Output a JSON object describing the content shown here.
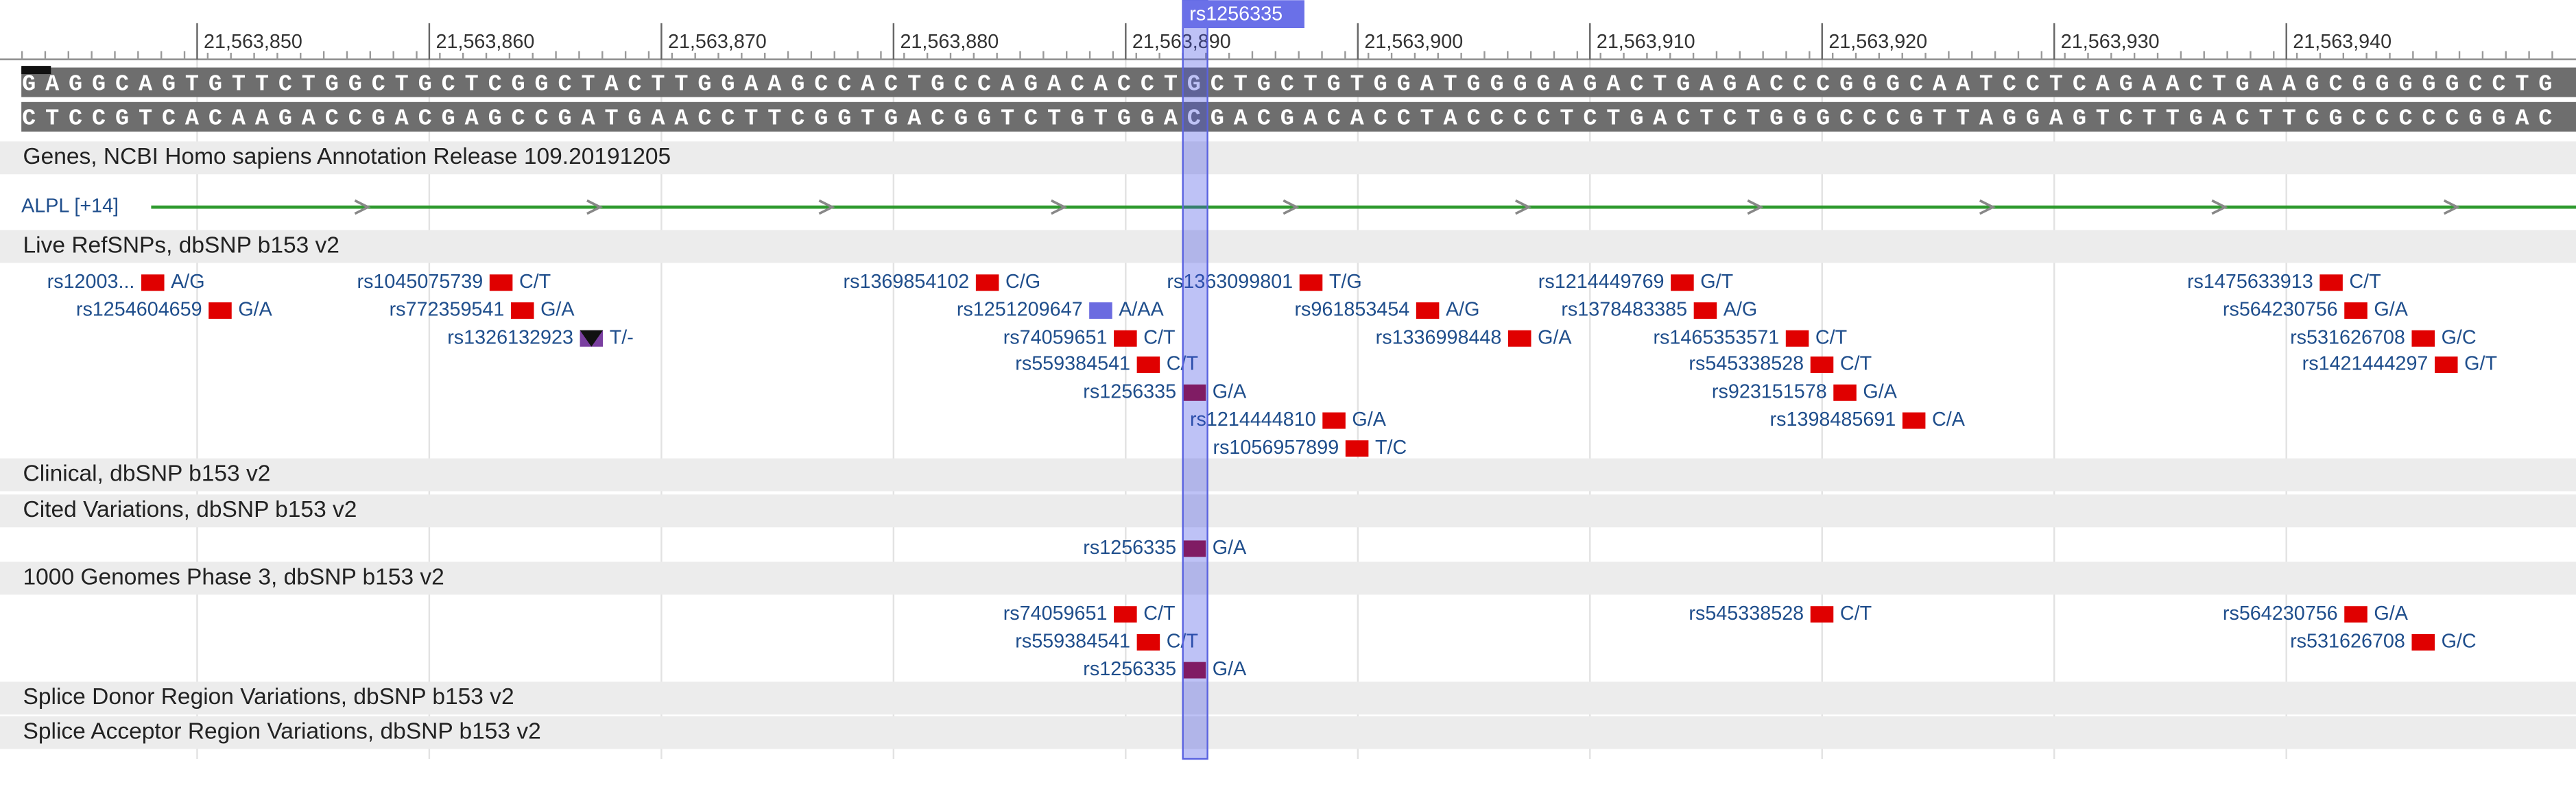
{
  "ruler": {
    "labels": [
      "21,563,850",
      "21,563,860",
      "21,563,870",
      "21,563,880",
      "21,563,890",
      "21,563,900",
      "21,563,910",
      "21,563,920",
      "21,563,930",
      "21,563,940"
    ],
    "highlight": "rs1256335"
  },
  "sequence": {
    "forward": "GAGGCAGTGTTCTGGCTGCTCGGCTACTTGGAAGCCACTGCCAGACACCTGCTGCTGTGGATGGGGAGACTGAGACCCGGGCAATCCTCAGAACTGAAGCGGGGGCCTG",
    "reverse": "CTCCGTCACAAGACCGACGAGCCGATGAACCTTCGGTGACGGTCTGTGGACGACGACACCTACCCCTCTGACTCTGGGCCCGTTAGGAGTCTTGACTTCGCCCCCGGAC"
  },
  "tracks": [
    {
      "title": "Genes, NCBI Homo sapiens Annotation Release 109.20191205",
      "features": [
        {
          "label": "ALPL [+14]"
        }
      ]
    },
    {
      "title": "Live RefSNPs, dbSNP b153 v2",
      "snps": [
        {
          "name": "rs12003...",
          "allele": "A/G",
          "color": "#e00000"
        },
        {
          "name": "rs1045075739",
          "allele": "C/T",
          "color": "#e00000"
        },
        {
          "name": "rs1369854102",
          "allele": "C/G",
          "color": "#e00000"
        },
        {
          "name": "rs1363099801",
          "allele": "T/G",
          "color": "#e00000"
        },
        {
          "name": "rs1214449769",
          "allele": "G/T",
          "color": "#e00000"
        },
        {
          "name": "rs1475633913",
          "allele": "C/T",
          "color": "#e00000"
        },
        {
          "name": "rs1254604659",
          "allele": "G/A",
          "color": "#e00000"
        },
        {
          "name": "rs772359541",
          "allele": "G/A",
          "color": "#e00000"
        },
        {
          "name": "rs1251209647",
          "allele": "A/AA",
          "color": "#6b6be0"
        },
        {
          "name": "rs961853454",
          "allele": "A/G",
          "color": "#e00000"
        },
        {
          "name": "rs1378483385",
          "allele": "A/G",
          "color": "#e00000"
        },
        {
          "name": "rs564230756",
          "allele": "G/A",
          "color": "#e00000"
        },
        {
          "name": "rs1326132923",
          "allele": "T/-",
          "color": "#7a3fa0"
        },
        {
          "name": "rs74059651",
          "allele": "C/T",
          "color": "#e00000"
        },
        {
          "name": "rs1336998448",
          "allele": "G/A",
          "color": "#e00000"
        },
        {
          "name": "rs1465353571",
          "allele": "C/T",
          "color": "#e00000"
        },
        {
          "name": "rs531626708",
          "allele": "G/C",
          "color": "#e00000"
        },
        {
          "name": "rs559384541",
          "allele": "C/T",
          "color": "#e00000"
        },
        {
          "name": "rs545338528",
          "allele": "C/T",
          "color": "#e00000"
        },
        {
          "name": "rs1421444297",
          "allele": "G/T",
          "color": "#e00000"
        },
        {
          "name": "rs1256335",
          "allele": "G/A",
          "color": "#a00020"
        },
        {
          "name": "rs923151578",
          "allele": "G/A",
          "color": "#e00000"
        },
        {
          "name": "rs1214444810",
          "allele": "G/A",
          "color": "#e00000"
        },
        {
          "name": "rs1398485691",
          "allele": "C/A",
          "color": "#e00000"
        },
        {
          "name": "rs1056957899",
          "allele": "T/C",
          "color": "#e00000"
        }
      ]
    },
    {
      "title": "Clinical, dbSNP b153 v2"
    },
    {
      "title": "Cited Variations, dbSNP b153 v2",
      "snps": [
        {
          "name": "rs1256335",
          "allele": "G/A",
          "color": "#a00020"
        }
      ]
    },
    {
      "title": "1000 Genomes Phase 3, dbSNP b153 v2",
      "snps": [
        {
          "name": "rs74059651",
          "allele": "C/T",
          "color": "#e00000"
        },
        {
          "name": "rs545338528",
          "allele": "C/T",
          "color": "#e00000"
        },
        {
          "name": "rs564230756",
          "allele": "G/A",
          "color": "#e00000"
        },
        {
          "name": "rs559384541",
          "allele": "C/T",
          "color": "#e00000"
        },
        {
          "name": "rs531626708",
          "allele": "G/C",
          "color": "#e00000"
        },
        {
          "name": "rs1256335",
          "allele": "G/A",
          "color": "#a00020"
        }
      ]
    },
    {
      "title": "Splice Donor Region Variations, dbSNP b153 v2"
    },
    {
      "title": "Splice Acceptor Region Variations, dbSNP b153 v2"
    }
  ]
}
